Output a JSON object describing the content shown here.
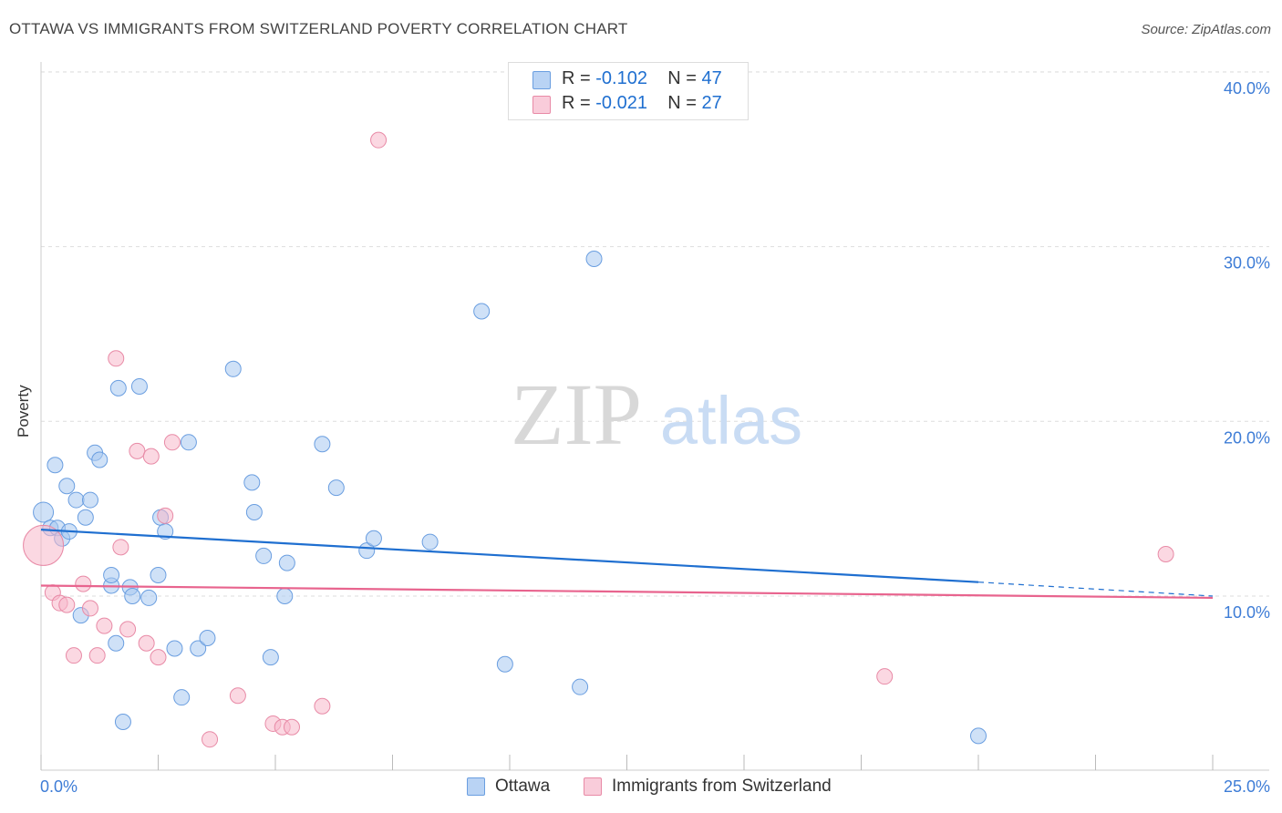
{
  "title": "OTTAWA VS IMMIGRANTS FROM SWITZERLAND POVERTY CORRELATION CHART",
  "source": "Source: ZipAtlas.com",
  "watermark": {
    "zip": "ZIP",
    "atlas": "atlas"
  },
  "legend": {
    "r_label": "R =",
    "n_label": "N =",
    "rows": [
      {
        "name": "Ottawa",
        "r": "-0.102",
        "n": "47",
        "color": "#a8c8f0",
        "stroke": "#6a9ee0"
      },
      {
        "name": "Immigrants from Switzerland",
        "r": "-0.021",
        "n": "27",
        "color": "#f7b8cb",
        "stroke": "#e88aa6"
      }
    ]
  },
  "colors": {
    "blue_line": "#1f6fd0",
    "pink_line": "#e8648e",
    "axis_text": "#3d7cd6",
    "grid": "#dddddd"
  },
  "chart_data": {
    "type": "scatter",
    "title": "OTTAWA VS IMMIGRANTS FROM SWITZERLAND POVERTY CORRELATION CHART",
    "xlabel": "",
    "ylabel": "Poverty",
    "xlim": [
      0,
      25
    ],
    "ylim": [
      0,
      41
    ],
    "x_tick_labels": [
      "0.0%",
      "25.0%"
    ],
    "y_ticks": [
      10,
      20,
      30,
      40
    ],
    "y_tick_labels": [
      "10.0%",
      "20.0%",
      "30.0%",
      "40.0%"
    ],
    "series": [
      {
        "name": "Ottawa",
        "points": [
          [
            0.05,
            14.8
          ],
          [
            0.2,
            13.9
          ],
          [
            0.3,
            17.5
          ],
          [
            0.35,
            13.9
          ],
          [
            0.45,
            13.3
          ],
          [
            0.55,
            16.3
          ],
          [
            0.6,
            13.7
          ],
          [
            0.75,
            15.5
          ],
          [
            0.85,
            8.9
          ],
          [
            0.95,
            14.5
          ],
          [
            1.05,
            15.5
          ],
          [
            1.15,
            18.2
          ],
          [
            1.25,
            17.8
          ],
          [
            1.5,
            10.6
          ],
          [
            1.5,
            11.2
          ],
          [
            1.6,
            7.3
          ],
          [
            1.65,
            21.9
          ],
          [
            1.75,
            2.8
          ],
          [
            1.9,
            10.5
          ],
          [
            1.95,
            10.0
          ],
          [
            2.1,
            22.0
          ],
          [
            2.3,
            9.9
          ],
          [
            2.5,
            11.2
          ],
          [
            2.55,
            14.5
          ],
          [
            2.65,
            13.7
          ],
          [
            2.85,
            7.0
          ],
          [
            3.0,
            4.2
          ],
          [
            3.15,
            18.8
          ],
          [
            3.35,
            7.0
          ],
          [
            3.55,
            7.6
          ],
          [
            4.1,
            23.0
          ],
          [
            4.5,
            16.5
          ],
          [
            4.55,
            14.8
          ],
          [
            4.75,
            12.3
          ],
          [
            4.9,
            6.5
          ],
          [
            5.2,
            10.0
          ],
          [
            5.25,
            11.9
          ],
          [
            6.0,
            18.7
          ],
          [
            6.3,
            16.2
          ],
          [
            6.95,
            12.6
          ],
          [
            7.1,
            13.3
          ],
          [
            8.3,
            13.1
          ],
          [
            9.4,
            26.3
          ],
          [
            9.9,
            6.1
          ],
          [
            11.5,
            4.8
          ],
          [
            11.8,
            29.3
          ],
          [
            20.0,
            2.0
          ]
        ]
      },
      {
        "name": "Immigrants from Switzerland",
        "points": [
          [
            0.05,
            12.9
          ],
          [
            0.25,
            10.2
          ],
          [
            0.4,
            9.6
          ],
          [
            0.55,
            9.5
          ],
          [
            0.7,
            6.6
          ],
          [
            0.9,
            10.7
          ],
          [
            1.05,
            9.3
          ],
          [
            1.2,
            6.6
          ],
          [
            1.35,
            8.3
          ],
          [
            1.6,
            23.6
          ],
          [
            1.7,
            12.8
          ],
          [
            1.85,
            8.1
          ],
          [
            2.05,
            18.3
          ],
          [
            2.25,
            7.3
          ],
          [
            2.35,
            18.0
          ],
          [
            2.5,
            6.5
          ],
          [
            2.65,
            14.6
          ],
          [
            2.8,
            18.8
          ],
          [
            3.6,
            1.8
          ],
          [
            4.2,
            4.3
          ],
          [
            4.95,
            2.7
          ],
          [
            5.15,
            2.5
          ],
          [
            5.35,
            2.5
          ],
          [
            6.0,
            3.7
          ],
          [
            7.2,
            36.1
          ],
          [
            18.0,
            5.4
          ],
          [
            24.0,
            12.4
          ]
        ]
      }
    ],
    "trend_lines": [
      {
        "name": "Ottawa",
        "start": [
          0,
          13.8
        ],
        "end": [
          20.0,
          10.8
        ],
        "dashed_end": [
          25.0,
          10.0
        ]
      },
      {
        "name": "Immigrants from Switzerland",
        "start": [
          0,
          10.6
        ],
        "end": [
          25.0,
          9.9
        ]
      }
    ]
  }
}
